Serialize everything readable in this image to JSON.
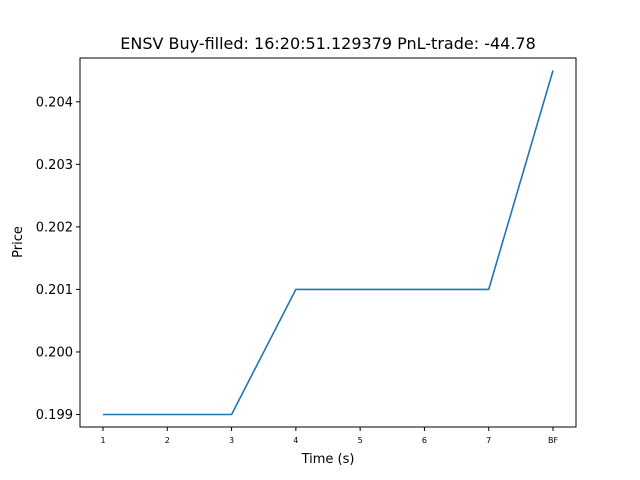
{
  "chart_data": {
    "type": "line",
    "title": "ENSV  Buy-filled:  16:20:51.129379  PnL-trade:  -44.78",
    "xlabel": "Time (s)",
    "ylabel": "Price",
    "categories": [
      "1",
      "2",
      "3",
      "4",
      "5",
      "6",
      "7",
      "BF"
    ],
    "series": [
      {
        "values": [
          0.199,
          0.199,
          0.199,
          0.201,
          0.201,
          0.201,
          0.201,
          0.2045
        ],
        "color": "#1f77b4"
      }
    ],
    "yticks": [
      0.199,
      0.2,
      0.201,
      0.202,
      0.203,
      0.204
    ],
    "ytick_labels": [
      "0.199",
      "0.200",
      "0.201",
      "0.202",
      "0.203",
      "0.204"
    ],
    "ylim": [
      0.1988,
      0.2047
    ],
    "grid": false
  }
}
